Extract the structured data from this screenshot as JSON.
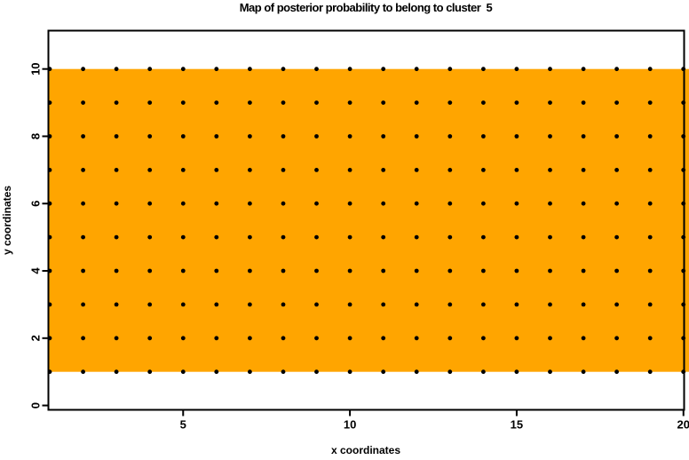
{
  "chart_data": {
    "type": "scatter",
    "title": "Map of posterior probability to belong to cluster  5",
    "xlabel": "x coordinates",
    "ylabel": "y coordinates",
    "x_ticks": [
      5,
      10,
      15,
      20
    ],
    "y_ticks": [
      0,
      2,
      4,
      6,
      8,
      10
    ],
    "xlim": [
      0.96,
      20.02
    ],
    "ylim": [
      -0.13,
      11.14
    ],
    "grid_points": {
      "x_values": [
        1,
        2,
        3,
        4,
        5,
        6,
        7,
        8,
        9,
        10,
        11,
        12,
        13,
        14,
        15,
        16,
        17,
        18,
        19,
        20
      ],
      "y_values": [
        1,
        2,
        3,
        4,
        5,
        6,
        7,
        8,
        9,
        10
      ],
      "marker_color": "#000000"
    },
    "shaded_region": {
      "x_range": [
        1,
        20
      ],
      "y_range": [
        1,
        10
      ],
      "color": "#FFA500"
    },
    "colors": {
      "background": "#FFFFFF",
      "axis": "#000000"
    }
  }
}
